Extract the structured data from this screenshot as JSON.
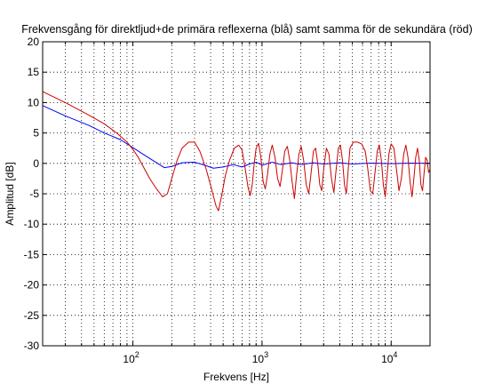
{
  "chart_data": {
    "type": "line",
    "title": "Frekvensgång för direktljud+de primära reflexerna (blå) samt samma för de sekundära (röd)",
    "xlabel": "Frekvens [Hz]",
    "ylabel": "Amplitud [dB]",
    "xscale": "log",
    "xlim": [
      20,
      20000
    ],
    "ylim": [
      -30,
      20
    ],
    "grid": true,
    "x_ticks": [
      {
        "value": 100,
        "base": "10",
        "exp": "2"
      },
      {
        "value": 1000,
        "base": "10",
        "exp": "3"
      },
      {
        "value": 10000,
        "base": "10",
        "exp": "4"
      }
    ],
    "y_ticks": [
      "20",
      "15",
      "10",
      "5",
      "0",
      "-5",
      "-10",
      "-15",
      "-20",
      "-25",
      "-30"
    ],
    "series": [
      {
        "color": "#0000ff",
        "points": [
          [
            20,
            9.5
          ],
          [
            30,
            7.8
          ],
          [
            45,
            6.3
          ],
          [
            60,
            5.0
          ],
          [
            80,
            3.9
          ],
          [
            100,
            2.6
          ],
          [
            120,
            1.5
          ],
          [
            150,
            0.2
          ],
          [
            175,
            -0.7
          ],
          [
            200,
            -0.5
          ],
          [
            240,
            0.1
          ],
          [
            300,
            0.2
          ],
          [
            360,
            -0.3
          ],
          [
            420,
            -0.8
          ],
          [
            500,
            -0.6
          ],
          [
            600,
            -0.2
          ],
          [
            700,
            -0.6
          ],
          [
            800,
            -0.1
          ],
          [
            900,
            0.2
          ],
          [
            1000,
            -0.3
          ],
          [
            1200,
            0.2
          ],
          [
            1400,
            -0.2
          ],
          [
            1700,
            0.1
          ],
          [
            2000,
            -0.2
          ],
          [
            2500,
            0.1
          ],
          [
            3000,
            -0.1
          ],
          [
            4000,
            0.1
          ],
          [
            5000,
            -0.1
          ],
          [
            7000,
            0.05
          ],
          [
            10000,
            -0.05
          ],
          [
            14000,
            0.05
          ],
          [
            20000,
            0.0
          ]
        ]
      },
      {
        "color": "#cc0000",
        "points": [
          [
            20,
            11.8
          ],
          [
            30,
            10.0
          ],
          [
            45,
            8.0
          ],
          [
            60,
            6.5
          ],
          [
            75,
            5.0
          ],
          [
            90,
            3.5
          ],
          [
            100,
            2.3
          ],
          [
            110,
            1.0
          ],
          [
            120,
            -0.5
          ],
          [
            135,
            -2.5
          ],
          [
            150,
            -4.0
          ],
          [
            170,
            -5.5
          ],
          [
            185,
            -5.0
          ],
          [
            200,
            -2.5
          ],
          [
            220,
            0.5
          ],
          [
            240,
            2.5
          ],
          [
            270,
            3.5
          ],
          [
            300,
            3.5
          ],
          [
            330,
            2.0
          ],
          [
            370,
            -1.0
          ],
          [
            410,
            -4.5
          ],
          [
            440,
            -7.0
          ],
          [
            460,
            -7.8
          ],
          [
            490,
            -5.0
          ],
          [
            520,
            -2.0
          ],
          [
            560,
            0.5
          ],
          [
            610,
            2.5
          ],
          [
            660,
            3.0
          ],
          [
            700,
            2.2
          ],
          [
            740,
            -0.8
          ],
          [
            780,
            -4.0
          ],
          [
            810,
            -5.3
          ],
          [
            840,
            -3.5
          ],
          [
            870,
            0.0
          ],
          [
            900,
            2.5
          ],
          [
            940,
            3.3
          ],
          [
            980,
            1.0
          ],
          [
            1020,
            -3.0
          ],
          [
            1060,
            -4.2
          ],
          [
            1100,
            -2.0
          ],
          [
            1150,
            1.5
          ],
          [
            1200,
            3.0
          ],
          [
            1260,
            1.0
          ],
          [
            1320,
            -2.5
          ],
          [
            1380,
            -3.8
          ],
          [
            1440,
            -1.0
          ],
          [
            1500,
            2.0
          ],
          [
            1570,
            2.8
          ],
          [
            1640,
            0.5
          ],
          [
            1710,
            -3.0
          ],
          [
            1780,
            -5.8
          ],
          [
            1850,
            -2.0
          ],
          [
            1930,
            1.5
          ],
          [
            2010,
            2.8
          ],
          [
            2100,
            0.5
          ],
          [
            2200,
            -3.5
          ],
          [
            2300,
            -5.0
          ],
          [
            2400,
            -1.5
          ],
          [
            2500,
            2.0
          ],
          [
            2600,
            2.5
          ],
          [
            2700,
            0.0
          ],
          [
            2800,
            -3.5
          ],
          [
            2900,
            -4.5
          ],
          [
            3000,
            -1.0
          ],
          [
            3150,
            2.5
          ],
          [
            3300,
            1.5
          ],
          [
            3450,
            -2.5
          ],
          [
            3600,
            -4.8
          ],
          [
            3750,
            -1.0
          ],
          [
            3900,
            2.5
          ],
          [
            4050,
            3.0
          ],
          [
            4200,
            0.5
          ],
          [
            4350,
            -3.5
          ],
          [
            4500,
            -5.0
          ],
          [
            4650,
            -1.0
          ],
          [
            4800,
            2.5
          ],
          [
            5100,
            3.5
          ],
          [
            5500,
            3.5
          ],
          [
            5900,
            3.2
          ],
          [
            6300,
            2.0
          ],
          [
            6600,
            -1.0
          ],
          [
            6900,
            -4.5
          ],
          [
            7200,
            -5.0
          ],
          [
            7500,
            -1.5
          ],
          [
            7800,
            2.0
          ],
          [
            8100,
            3.0
          ],
          [
            8400,
            0.5
          ],
          [
            8700,
            -3.5
          ],
          [
            9000,
            -5.5
          ],
          [
            9300,
            -2.0
          ],
          [
            9600,
            1.5
          ],
          [
            10000,
            3.2
          ],
          [
            10500,
            2.5
          ],
          [
            11000,
            -1.0
          ],
          [
            11500,
            -4.5
          ],
          [
            12000,
            -2.5
          ],
          [
            12500,
            1.5
          ],
          [
            13000,
            3.0
          ],
          [
            13500,
            1.0
          ],
          [
            14000,
            -3.0
          ],
          [
            14500,
            -5.5
          ],
          [
            15000,
            -2.5
          ],
          [
            15500,
            1.0
          ],
          [
            16000,
            2.5
          ],
          [
            16500,
            0.5
          ],
          [
            17000,
            -3.5
          ],
          [
            17500,
            -4.5
          ],
          [
            18000,
            -1.5
          ],
          [
            18500,
            1.0
          ],
          [
            19000,
            0.5
          ],
          [
            19500,
            -1.5
          ],
          [
            20000,
            -1.0
          ]
        ]
      }
    ]
  }
}
